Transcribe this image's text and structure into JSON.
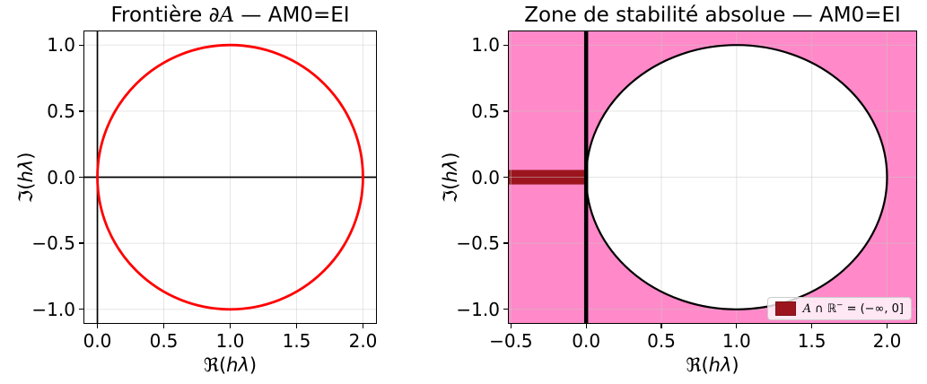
{
  "figure_background": "#ffffff",
  "chart_data": [
    {
      "id": "frontiere",
      "type": "line",
      "title": "Frontière ∂𝒜 — AM0=EI",
      "title_parts": [
        {
          "t": "Frontière ∂"
        },
        {
          "t": "A",
          "s": "script"
        },
        {
          "t": " — AM0=EI"
        }
      ],
      "xlabel": "ℜ(hλ)",
      "xlabel_parts": [
        {
          "t": "ℜ("
        },
        {
          "t": "hλ",
          "s": "it"
        },
        {
          "t": ")"
        }
      ],
      "ylabel": "ℑ(hλ)",
      "ylabel_parts": [
        {
          "t": "ℑ("
        },
        {
          "t": "hλ",
          "s": "it"
        },
        {
          "t": ")"
        }
      ],
      "xlim": [
        -0.105,
        2.105
      ],
      "ylim": [
        -1.11,
        1.11
      ],
      "xticks": {
        "values": [
          0,
          0.5,
          1,
          1.5,
          2
        ],
        "labels": [
          "0.0",
          "0.5",
          "1.0",
          "1.5",
          "2.0"
        ]
      },
      "yticks": {
        "values": [
          1,
          0.5,
          0,
          -0.5,
          -1
        ],
        "labels": [
          "1.0",
          "0.5",
          "0.0",
          "−0.5",
          "−1.0"
        ]
      },
      "grid": true,
      "grid_color": "rgba(200,200,200,0.45)",
      "axlines": [
        {
          "orient": "h",
          "pos": 0,
          "color": "#000000",
          "width": 1.7
        },
        {
          "orient": "v",
          "pos": 0,
          "color": "#000000",
          "width": 1.7
        }
      ],
      "circles": [
        {
          "name": "stability-boundary-circle",
          "center": [
            1,
            0
          ],
          "radius": 1,
          "stroke": "#ff0000",
          "stroke_width": 2.8,
          "fill": "none"
        }
      ]
    },
    {
      "id": "zone-stabilite",
      "type": "area",
      "title": "Zone de stabilité absolue — AM0=EI",
      "title_parts": [
        {
          "t": "Zone de stabilité absolue — AM0=EI"
        }
      ],
      "xlabel": "ℜ(hλ)",
      "xlabel_parts": [
        {
          "t": "ℜ("
        },
        {
          "t": "hλ",
          "s": "it"
        },
        {
          "t": ")"
        }
      ],
      "ylabel": "ℑ(hλ)",
      "ylabel_parts": [
        {
          "t": "ℑ("
        },
        {
          "t": "hλ",
          "s": "it"
        },
        {
          "t": ")"
        }
      ],
      "xlim": [
        -0.52,
        2.2
      ],
      "ylim": [
        -1.11,
        1.11
      ],
      "xticks": {
        "values": [
          -0.5,
          0,
          0.5,
          1,
          1.5,
          2
        ],
        "labels": [
          "−0.5",
          "0.0",
          "0.5",
          "1.0",
          "1.5",
          "2.0"
        ]
      },
      "yticks": {
        "values": [
          1,
          0.5,
          0,
          -0.5,
          -1
        ],
        "labels": [
          "1.0",
          "0.5",
          "0.0",
          "−0.5",
          "−1.0"
        ]
      },
      "grid": true,
      "grid_color": "rgba(200,200,200,0.5)",
      "stable_fill": {
        "name": "absolute-stability-region",
        "color": "#ff1493",
        "opacity": 0.5,
        "hole": {
          "center": [
            1,
            0
          ],
          "radius": 1
        }
      },
      "bar": {
        "name": "negative-real-axis-segment",
        "x": [
          -0.52,
          0
        ],
        "y": [
          -0.055,
          0.055
        ],
        "color": "#9c151e"
      },
      "axlines": [
        {
          "orient": "v",
          "pos": 0,
          "color": "#000000",
          "width": 4.5
        }
      ],
      "circles": [
        {
          "name": "instability-disk-boundary",
          "center": [
            1,
            0
          ],
          "radius": 1,
          "stroke": "#000000",
          "stroke_width": 2.2,
          "fill": "none"
        }
      ],
      "legend": {
        "position": "lower right",
        "entries": [
          {
            "label": "𝒜 ∩ ℝ⁻ = (−∞, 0]",
            "label_parts": [
              {
                "t": "A",
                "s": "script"
              },
              {
                "t": " ∩ ℝ"
              },
              {
                "t": "−",
                "s": "sup"
              },
              {
                "t": " = (−∞, 0]"
              }
            ],
            "swatch_color": "#9c151e"
          }
        ]
      }
    }
  ]
}
